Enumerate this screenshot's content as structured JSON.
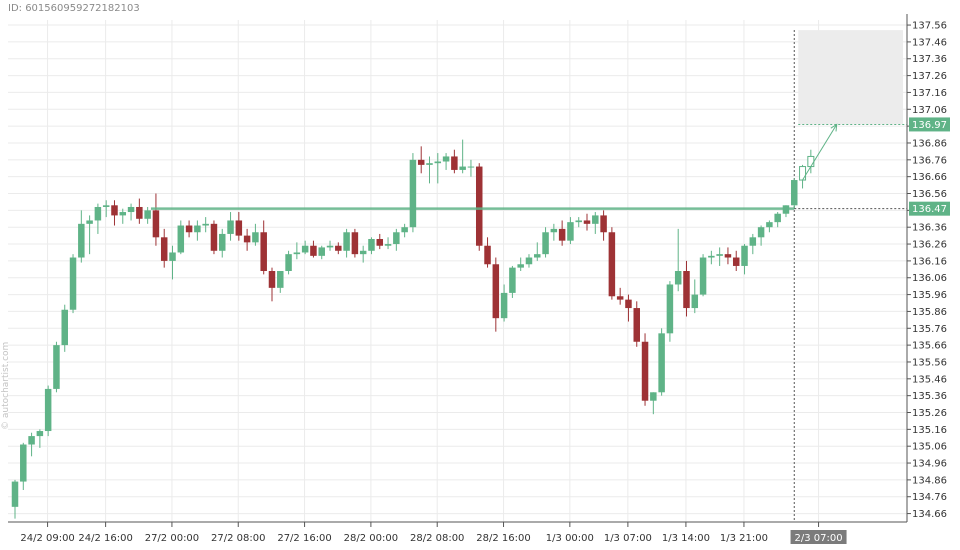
{
  "header": {
    "id_label": "ID: 6015609592721821​03"
  },
  "watermark": "© autochartist.com",
  "chart_data": {
    "type": "candlestick",
    "title": "",
    "xlabel": "",
    "ylabel": "",
    "grid": true,
    "y_axis_position": "right",
    "ylim": [
      134.61,
      137.59
    ],
    "y_ticks": [
      134.66,
      134.76,
      134.86,
      134.96,
      135.06,
      135.16,
      135.26,
      135.36,
      135.46,
      135.56,
      135.66,
      135.76,
      135.86,
      135.96,
      136.06,
      136.16,
      136.26,
      136.36,
      136.46,
      136.56,
      136.66,
      136.76,
      136.86,
      136.96,
      137.06,
      137.16,
      137.26,
      137.36,
      137.46,
      137.56
    ],
    "x_ticks": [
      {
        "index": 2,
        "label": "24/2 09:00"
      },
      {
        "index": 9,
        "label": "24/2 16:00"
      },
      {
        "index": 17,
        "label": "27/2 00:00"
      },
      {
        "index": 25,
        "label": "27/2 08:00"
      },
      {
        "index": 33,
        "label": "27/2 16:00"
      },
      {
        "index": 41,
        "label": "28/2 00:00"
      },
      {
        "index": 49,
        "label": "28/2 08:00"
      },
      {
        "index": 57,
        "label": "28/2 16:00"
      },
      {
        "index": 65,
        "label": "1/3 00:00"
      },
      {
        "index": 72,
        "label": "1/3 07:00"
      },
      {
        "index": 79,
        "label": "1/3 14:00"
      },
      {
        "index": 86,
        "label": "1/3 21:00"
      },
      {
        "index": 95,
        "label": "2/3 07:00",
        "highlight": true
      }
    ],
    "candles": [
      [
        134.7,
        134.86,
        134.63,
        134.85
      ],
      [
        134.85,
        135.08,
        134.8,
        135.07
      ],
      [
        135.07,
        135.14,
        135.0,
        135.12
      ],
      [
        135.12,
        135.16,
        135.05,
        135.15
      ],
      [
        135.15,
        135.42,
        135.12,
        135.4
      ],
      [
        135.4,
        135.68,
        135.38,
        135.66
      ],
      [
        135.66,
        135.9,
        135.62,
        135.87
      ],
      [
        135.87,
        136.2,
        135.85,
        136.18
      ],
      [
        136.18,
        136.46,
        136.15,
        136.38
      ],
      [
        136.38,
        136.43,
        136.2,
        136.4
      ],
      [
        136.4,
        136.5,
        136.32,
        136.48
      ],
      [
        136.48,
        136.52,
        136.42,
        136.49
      ],
      [
        136.49,
        136.52,
        136.37,
        136.43
      ],
      [
        136.43,
        136.47,
        136.38,
        136.45
      ],
      [
        136.45,
        136.5,
        136.4,
        136.48
      ],
      [
        136.48,
        136.53,
        136.38,
        136.41
      ],
      [
        136.41,
        136.48,
        136.38,
        136.46
      ],
      [
        136.46,
        136.56,
        136.25,
        136.3
      ],
      [
        136.3,
        136.35,
        136.12,
        136.16
      ],
      [
        136.16,
        136.25,
        136.05,
        136.21
      ],
      [
        136.21,
        136.4,
        136.2,
        136.37
      ],
      [
        136.37,
        136.4,
        136.3,
        136.33
      ],
      [
        136.33,
        136.4,
        136.28,
        136.37
      ],
      [
        136.37,
        136.42,
        136.33,
        136.38
      ],
      [
        136.38,
        136.4,
        136.2,
        136.22
      ],
      [
        136.22,
        136.35,
        136.18,
        136.32
      ],
      [
        136.32,
        136.45,
        136.28,
        136.4
      ],
      [
        136.4,
        136.45,
        136.28,
        136.31
      ],
      [
        136.31,
        136.35,
        136.22,
        136.27
      ],
      [
        136.27,
        136.38,
        136.25,
        136.33
      ],
      [
        136.33,
        136.4,
        136.08,
        136.1
      ],
      [
        136.1,
        136.12,
        135.92,
        136.0
      ],
      [
        136.0,
        136.1,
        135.97,
        136.1
      ],
      [
        136.1,
        136.22,
        136.08,
        136.2
      ],
      [
        136.2,
        136.27,
        136.17,
        136.21
      ],
      [
        136.21,
        136.28,
        136.2,
        136.25
      ],
      [
        136.25,
        136.28,
        136.18,
        136.19
      ],
      [
        136.19,
        136.25,
        136.17,
        136.24
      ],
      [
        136.24,
        136.28,
        136.22,
        136.25
      ],
      [
        136.25,
        136.27,
        136.2,
        136.22
      ],
      [
        136.22,
        136.35,
        136.18,
        136.33
      ],
      [
        136.33,
        136.35,
        136.18,
        136.2
      ],
      [
        136.2,
        136.25,
        136.15,
        136.22
      ],
      [
        136.22,
        136.3,
        136.2,
        136.29
      ],
      [
        136.29,
        136.32,
        136.23,
        136.25
      ],
      [
        136.25,
        136.3,
        136.23,
        136.26
      ],
      [
        136.26,
        136.35,
        136.22,
        136.33
      ],
      [
        136.33,
        136.38,
        136.3,
        136.36
      ],
      [
        136.36,
        136.8,
        136.33,
        136.76
      ],
      [
        136.76,
        136.84,
        136.68,
        136.73
      ],
      [
        136.73,
        136.78,
        136.62,
        136.74
      ],
      [
        136.74,
        136.8,
        136.62,
        136.75
      ],
      [
        136.75,
        136.8,
        136.7,
        136.78
      ],
      [
        136.78,
        136.82,
        136.68,
        136.7
      ],
      [
        136.7,
        136.88,
        136.68,
        136.72
      ],
      [
        136.72,
        136.76,
        136.66,
        136.72
      ],
      [
        136.72,
        136.74,
        136.22,
        136.25
      ],
      [
        136.25,
        136.3,
        136.12,
        136.14
      ],
      [
        136.14,
        136.18,
        135.74,
        135.82
      ],
      [
        135.82,
        136.02,
        135.8,
        135.97
      ],
      [
        135.97,
        136.13,
        135.94,
        136.12
      ],
      [
        136.12,
        136.18,
        136.1,
        136.14
      ],
      [
        136.14,
        136.2,
        136.12,
        136.18
      ],
      [
        136.18,
        136.27,
        136.16,
        136.2
      ],
      [
        136.2,
        136.36,
        136.18,
        136.33
      ],
      [
        136.33,
        136.38,
        136.28,
        136.35
      ],
      [
        136.35,
        136.4,
        136.25,
        136.28
      ],
      [
        136.28,
        136.42,
        136.26,
        136.39
      ],
      [
        136.39,
        136.42,
        136.36,
        136.4
      ],
      [
        136.4,
        136.44,
        136.34,
        136.38
      ],
      [
        136.38,
        136.45,
        136.32,
        136.43
      ],
      [
        136.43,
        136.46,
        136.28,
        136.33
      ],
      [
        136.33,
        136.36,
        135.93,
        135.95
      ],
      [
        135.95,
        136.0,
        135.9,
        135.93
      ],
      [
        135.93,
        135.96,
        135.8,
        135.88
      ],
      [
        135.88,
        135.92,
        135.65,
        135.68
      ],
      [
        135.68,
        135.73,
        135.3,
        135.33
      ],
      [
        135.33,
        135.38,
        135.25,
        135.38
      ],
      [
        135.38,
        135.76,
        135.36,
        135.73
      ],
      [
        135.73,
        136.04,
        135.68,
        136.02
      ],
      [
        136.02,
        136.35,
        135.98,
        136.1
      ],
      [
        136.1,
        136.16,
        135.83,
        135.88
      ],
      [
        135.88,
        136.05,
        135.85,
        135.96
      ],
      [
        135.96,
        136.2,
        135.95,
        136.18
      ],
      [
        136.18,
        136.22,
        136.14,
        136.19
      ],
      [
        136.19,
        136.24,
        136.13,
        136.2
      ],
      [
        136.2,
        136.24,
        136.14,
        136.18
      ],
      [
        136.18,
        136.22,
        136.1,
        136.13
      ],
      [
        136.13,
        136.26,
        136.08,
        136.25
      ],
      [
        136.25,
        136.32,
        136.2,
        136.3
      ],
      [
        136.3,
        136.37,
        136.25,
        136.36
      ],
      [
        136.36,
        136.4,
        136.33,
        136.39
      ],
      [
        136.39,
        136.45,
        136.36,
        136.44
      ],
      [
        136.44,
        136.49,
        136.42,
        136.49
      ],
      [
        136.49,
        136.65,
        136.47,
        136.64
      ]
    ],
    "projected_candles": [
      [
        136.64,
        136.73,
        136.59,
        136.72
      ],
      [
        136.72,
        136.82,
        136.68,
        136.78
      ]
    ],
    "resistance_level": 136.47,
    "resistance_start_index": 17,
    "target_price": 136.97,
    "target_zone": [
      136.97,
      137.53
    ],
    "projection_line": [
      [
        95,
        136.64
      ],
      [
        99,
        136.97
      ]
    ],
    "price_labels": [
      {
        "value": 136.97,
        "label": "136.97"
      },
      {
        "value": 136.47,
        "label": "136.47"
      }
    ],
    "colors": {
      "bull": "#5fb387",
      "bear": "#9e3235",
      "resistance": "#5fb387",
      "target_zone": "#ececec",
      "grid": "#ebebeb",
      "axis_text": "#333333",
      "label_bg": "#5fb387",
      "highlight_label_bg": "#7b7b7b"
    }
  }
}
